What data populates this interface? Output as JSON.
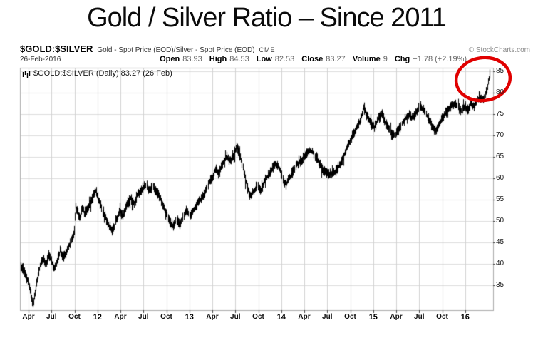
{
  "title": "Gold / Silver Ratio – Since 2011",
  "header": {
    "symbol": "$GOLD:$SILVER",
    "description": "Gold - Spot Price (EOD)/Silver - Spot Price (EOD)",
    "exchange": "CME",
    "copyright": "© StockCharts.com",
    "date": "26-Feb-2016",
    "quote": [
      {
        "label": "Open",
        "value": "83.93"
      },
      {
        "label": "High",
        "value": "84.53"
      },
      {
        "label": "Low",
        "value": "82.53"
      },
      {
        "label": "Close",
        "value": "83.27"
      },
      {
        "label": "Volume",
        "value": "9"
      },
      {
        "label": "Chg",
        "value": "+1.78 (+2.19%)"
      }
    ],
    "change_direction": "up"
  },
  "legend": "$GOLD:$SILVER (Daily) 83.27 (26 Feb)",
  "colors": {
    "bars": "#000000",
    "grid_h": "#dcdcdc",
    "grid_v": "#d2d2d2",
    "plot_border": "#ababab",
    "tick": "#444444",
    "annotation_red": "#e00000",
    "change_green": "#007700"
  },
  "chart_data": {
    "type": "line",
    "style": "daily OHLC price bars (black, dense)",
    "title": "$GOLD:$SILVER (Daily) 83.27 (26 Feb)",
    "x_unit": "months since Apr 2011",
    "months_per_tick": 3,
    "x_ticks": [
      {
        "label": "Apr",
        "year": false
      },
      {
        "label": "Jul",
        "year": false
      },
      {
        "label": "Oct",
        "year": false
      },
      {
        "label": "12",
        "year": true
      },
      {
        "label": "Apr",
        "year": false
      },
      {
        "label": "Jul",
        "year": false
      },
      {
        "label": "Oct",
        "year": false
      },
      {
        "label": "13",
        "year": true
      },
      {
        "label": "Apr",
        "year": false
      },
      {
        "label": "Jul",
        "year": false
      },
      {
        "label": "Oct",
        "year": false
      },
      {
        "label": "14",
        "year": true
      },
      {
        "label": "Apr",
        "year": false
      },
      {
        "label": "Jul",
        "year": false
      },
      {
        "label": "Oct",
        "year": false
      },
      {
        "label": "15",
        "year": true
      },
      {
        "label": "Apr",
        "year": false
      },
      {
        "label": "Jul",
        "year": false
      },
      {
        "label": "Oct",
        "year": false
      },
      {
        "label": "16",
        "year": true
      }
    ],
    "y_ticks": [
      85,
      80,
      75,
      70,
      65,
      60,
      55,
      50,
      45,
      40,
      35
    ],
    "ylim": [
      29.3,
      85.8
    ],
    "grid": true,
    "legend_position": "top-left inside plot",
    "last_quote": {
      "date": "26-Feb-2016",
      "open": 83.93,
      "high": 84.53,
      "low": 82.53,
      "close": 83.27,
      "volume": 9,
      "chg": "+1.78 (+2.19%)"
    },
    "series": [
      {
        "name": "$GOLD:$SILVER",
        "points": [
          [
            -1.0,
            39.5
          ],
          [
            -0.6,
            38.0
          ],
          [
            -0.2,
            36.3
          ],
          [
            0.2,
            33.5
          ],
          [
            0.55,
            30.6
          ],
          [
            0.8,
            32.5
          ],
          [
            1.1,
            36.5
          ],
          [
            1.5,
            39.8
          ],
          [
            1.9,
            41.0
          ],
          [
            2.3,
            40.0
          ],
          [
            2.6,
            42.3
          ],
          [
            3.0,
            40.5
          ],
          [
            3.3,
            38.8
          ],
          [
            3.7,
            40.5
          ],
          [
            4.1,
            43.0
          ],
          [
            4.5,
            41.5
          ],
          [
            4.9,
            42.5
          ],
          [
            5.3,
            44.5
          ],
          [
            5.7,
            45.8
          ],
          [
            5.95,
            47.5
          ],
          [
            6.1,
            53.5
          ],
          [
            6.4,
            52.0
          ],
          [
            6.7,
            50.5
          ],
          [
            7.0,
            53.5
          ],
          [
            7.3,
            51.5
          ],
          [
            7.7,
            53.0
          ],
          [
            8.1,
            54.5
          ],
          [
            8.5,
            56.0
          ],
          [
            8.8,
            57.3
          ],
          [
            9.1,
            55.0
          ],
          [
            9.6,
            52.5
          ],
          [
            10.1,
            50.5
          ],
          [
            10.6,
            48.5
          ],
          [
            10.9,
            47.8
          ],
          [
            11.4,
            50.0
          ],
          [
            11.9,
            52.3
          ],
          [
            12.3,
            51.0
          ],
          [
            12.8,
            53.8
          ],
          [
            13.3,
            55.3
          ],
          [
            13.7,
            54.0
          ],
          [
            14.2,
            56.3
          ],
          [
            14.7,
            57.3
          ],
          [
            15.2,
            58.5
          ],
          [
            15.7,
            57.3
          ],
          [
            16.2,
            58.0
          ],
          [
            16.7,
            56.8
          ],
          [
            17.2,
            55.3
          ],
          [
            17.7,
            52.8
          ],
          [
            18.1,
            51.0
          ],
          [
            18.5,
            49.5
          ],
          [
            18.9,
            48.8
          ],
          [
            19.3,
            50.5
          ],
          [
            19.7,
            49.3
          ],
          [
            20.1,
            51.0
          ],
          [
            20.6,
            52.5
          ],
          [
            21.1,
            51.3
          ],
          [
            21.6,
            53.0
          ],
          [
            22.1,
            54.3
          ],
          [
            22.6,
            55.3
          ],
          [
            23.1,
            57.3
          ],
          [
            23.6,
            59.0
          ],
          [
            24.0,
            60.3
          ],
          [
            24.4,
            62.5
          ],
          [
            24.8,
            61.0
          ],
          [
            25.3,
            63.3
          ],
          [
            25.8,
            65.0
          ],
          [
            26.3,
            64.0
          ],
          [
            26.8,
            65.8
          ],
          [
            27.2,
            67.3
          ],
          [
            27.6,
            65.0
          ],
          [
            28.1,
            61.5
          ],
          [
            28.5,
            58.0
          ],
          [
            28.9,
            55.8
          ],
          [
            29.3,
            56.8
          ],
          [
            29.8,
            58.3
          ],
          [
            30.3,
            57.0
          ],
          [
            30.8,
            59.3
          ],
          [
            31.3,
            60.8
          ],
          [
            31.8,
            62.3
          ],
          [
            32.3,
            63.5
          ],
          [
            32.8,
            62.0
          ],
          [
            33.2,
            59.8
          ],
          [
            33.6,
            58.5
          ],
          [
            34.1,
            60.3
          ],
          [
            34.6,
            62.0
          ],
          [
            35.1,
            63.3
          ],
          [
            35.6,
            64.3
          ],
          [
            36.1,
            65.3
          ],
          [
            36.6,
            66.5
          ],
          [
            37.1,
            66.0
          ],
          [
            37.6,
            64.8
          ],
          [
            38.0,
            63.3
          ],
          [
            38.5,
            61.8
          ],
          [
            39.0,
            61.2
          ],
          [
            39.6,
            61.0
          ],
          [
            40.1,
            61.8
          ],
          [
            40.5,
            62.8
          ],
          [
            41.0,
            64.5
          ],
          [
            41.5,
            67.0
          ],
          [
            42.0,
            69.0
          ],
          [
            42.5,
            70.8
          ],
          [
            43.0,
            72.3
          ],
          [
            43.4,
            74.3
          ],
          [
            43.75,
            76.8
          ],
          [
            44.1,
            74.8
          ],
          [
            44.6,
            73.0
          ],
          [
            45.1,
            71.8
          ],
          [
            45.6,
            73.8
          ],
          [
            46.1,
            75.0
          ],
          [
            46.6,
            73.0
          ],
          [
            47.1,
            71.0
          ],
          [
            47.6,
            69.8
          ],
          [
            48.1,
            70.8
          ],
          [
            48.6,
            72.3
          ],
          [
            49.1,
            73.8
          ],
          [
            49.6,
            75.0
          ],
          [
            50.1,
            74.0
          ],
          [
            50.6,
            75.5
          ],
          [
            51.1,
            77.0
          ],
          [
            51.6,
            75.8
          ],
          [
            52.1,
            74.3
          ],
          [
            52.6,
            72.3
          ],
          [
            53.1,
            71.0
          ],
          [
            53.6,
            72.8
          ],
          [
            54.1,
            74.3
          ],
          [
            54.6,
            75.8
          ],
          [
            55.1,
            76.8
          ],
          [
            55.6,
            77.5
          ],
          [
            56.1,
            76.5
          ],
          [
            56.5,
            75.5
          ],
          [
            56.9,
            77.0
          ],
          [
            57.3,
            76.0
          ],
          [
            57.7,
            77.5
          ],
          [
            58.1,
            76.8
          ],
          [
            58.5,
            78.2
          ],
          [
            58.9,
            79.0
          ],
          [
            59.3,
            78.5
          ],
          [
            59.6,
            79.5
          ],
          [
            59.85,
            81.0
          ],
          [
            60.05,
            83.0
          ],
          [
            60.2,
            84.4
          ]
        ]
      }
    ],
    "annotations": [
      {
        "type": "ellipse",
        "note": "red circle highlighting Feb 2016 spike near 84",
        "center_month": 59.3,
        "center_value": 81.5
      }
    ]
  }
}
